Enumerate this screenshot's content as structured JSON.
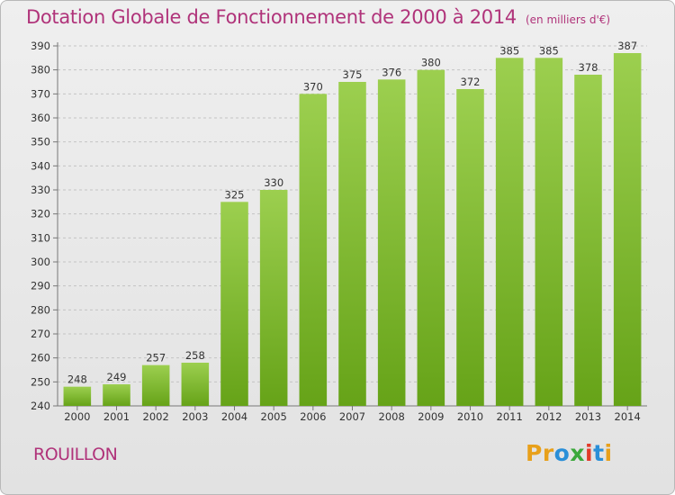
{
  "title": "Dotation Globale de Fonctionnement de 2000 à 2014",
  "unit": "(en milliers d'€)",
  "commune": "ROUILLON",
  "logo": {
    "text": "Proxiti",
    "colors": [
      "#e8a01a",
      "#e8a01a",
      "#2a8fd8",
      "#3ba83b",
      "#e23a2a",
      "#2a8fd8",
      "#e8a01a"
    ]
  },
  "colors": {
    "bar_light": "#9ccf4f",
    "bar_dark": "#66a318",
    "title": "#b0337a"
  },
  "chart_data": {
    "type": "bar",
    "categories": [
      "2000",
      "2001",
      "2002",
      "2003",
      "2004",
      "2005",
      "2006",
      "2007",
      "2008",
      "2009",
      "2010",
      "2011",
      "2012",
      "2013",
      "2014"
    ],
    "values": [
      248,
      249,
      257,
      258,
      325,
      330,
      370,
      375,
      376,
      380,
      372,
      385,
      385,
      378,
      387
    ],
    "ylim": [
      240,
      390
    ],
    "yticks": [
      240,
      250,
      260,
      270,
      280,
      290,
      300,
      310,
      320,
      330,
      340,
      350,
      360,
      370,
      380,
      390
    ],
    "grid": true
  }
}
